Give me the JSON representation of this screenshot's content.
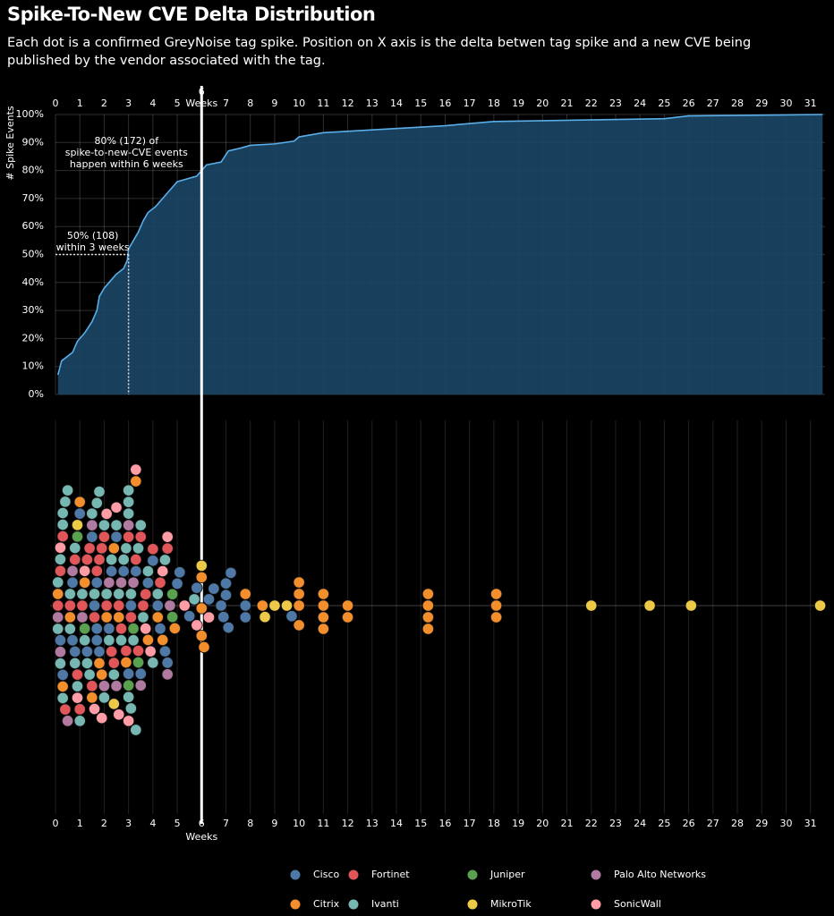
{
  "chart_data": [
    {
      "type": "area",
      "title": "Spike-To-New CVE Delta Distribution",
      "subtitle": "Each dot is a confirmed GreyNoise tag spike. Position on X axis is the delta betwen tag spike and a new CVE being published by the vendor associated with the tag.",
      "ylabel": "# Spike Events",
      "x_unit_label": "Weeks",
      "xlim": [
        0,
        31.6
      ],
      "xticks": [
        0,
        1,
        2,
        3,
        4,
        5,
        6,
        7,
        8,
        9,
        10,
        11,
        12,
        13,
        14,
        15,
        16,
        17,
        18,
        19,
        20,
        21,
        22,
        23,
        24,
        25,
        26,
        27,
        28,
        29,
        30,
        31
      ],
      "ylim": [
        0,
        100
      ],
      "yticks": [
        {
          "value": 0,
          "label": "0%"
        },
        {
          "value": 10,
          "label": "10%"
        },
        {
          "value": 20,
          "label": "20%"
        },
        {
          "value": 30,
          "label": "30%"
        },
        {
          "value": 40,
          "label": "40%"
        },
        {
          "value": 50,
          "label": "50%"
        },
        {
          "value": 60,
          "label": "60%"
        },
        {
          "value": 70,
          "label": "70%"
        },
        {
          "value": 80,
          "label": "80%"
        },
        {
          "value": 90,
          "label": "90%"
        },
        {
          "value": 100,
          "label": "100%"
        }
      ],
      "grid": true,
      "color": "#5aaee8",
      "fill": "#1b4767",
      "x": [
        0.1,
        0.25,
        0.4,
        0.7,
        0.9,
        1.2,
        1.5,
        1.7,
        1.8,
        2,
        2.2,
        2.5,
        2.8,
        2.95,
        3,
        3.2,
        3.4,
        3.6,
        3.8,
        4.1,
        4.4,
        4.7,
        5,
        5.4,
        5.8,
        6,
        6.2,
        6.8,
        7.1,
        7.6,
        8,
        9,
        9.8,
        10,
        11,
        13,
        16,
        18,
        25,
        26,
        31.5
      ],
      "values": [
        7,
        12,
        13,
        15,
        19,
        22,
        26,
        30,
        35,
        38,
        40,
        43,
        45,
        48,
        52,
        55,
        58,
        62,
        65,
        67,
        70,
        73,
        76,
        77,
        78,
        80,
        82,
        83,
        87,
        88,
        89,
        89.5,
        90.5,
        92,
        93.5,
        94.5,
        96,
        97.5,
        98.5,
        99.5,
        100
      ],
      "reference_lines": [
        {
          "x": 6,
          "style": "solid"
        },
        {
          "x": 3,
          "y": 50,
          "style": "dotted"
        }
      ],
      "annotations": [
        {
          "lines": [
            "80% (172) of",
            "spike-to-new-CVE events",
            "happen within 6 weeks"
          ]
        },
        {
          "lines": [
            "50% (108)",
            "within 3 weeks"
          ]
        }
      ]
    },
    {
      "type": "swarm",
      "xlim": [
        0,
        31.6
      ],
      "xticks": [
        0,
        1,
        2,
        3,
        4,
        5,
        6,
        7,
        8,
        9,
        10,
        11,
        12,
        13,
        14,
        15,
        16,
        17,
        18,
        19,
        20,
        21,
        22,
        23,
        24,
        25,
        26,
        27,
        28,
        29,
        30,
        31
      ],
      "x_unit_label": "Weeks",
      "legend": "bottom",
      "series": [
        {
          "name": "Cisco",
          "color": "#4e79a7",
          "x": [
            0.2,
            0.3,
            0.7,
            0.7,
            0.8,
            1,
            1.3,
            1.5,
            1.6,
            1.7,
            1.7,
            1.8,
            2.2,
            2.3,
            2.5,
            2.8,
            3,
            3.1,
            3.3,
            3.5,
            3.8,
            4,
            4.2,
            4.3,
            4.5,
            4.6,
            5,
            5.1,
            5.5,
            5.8,
            6.3,
            6.5,
            6.8,
            6.9,
            7,
            7,
            7.1,
            7.2,
            7.8,
            7.8,
            9.7,
            1.7
          ]
        },
        {
          "name": "Fortinet",
          "color": "#e15759",
          "x": [
            0.1,
            0.2,
            0.4,
            0.6,
            0.9,
            1,
            1.1,
            1.3,
            1.5,
            1.6,
            1.7,
            1.8,
            1.9,
            2,
            2.1,
            2.3,
            2.4,
            2.7,
            2.9,
            3,
            3.1,
            3.3,
            3.4,
            3.6,
            3.7,
            4,
            4.3,
            4.6,
            0.3,
            0.8,
            1.4,
            2.6,
            3.5
          ]
        },
        {
          "name": "Juniper",
          "color": "#59a14f",
          "x": [
            0.9,
            1.2,
            3,
            3.4,
            4.8,
            4.8,
            3.2
          ]
        },
        {
          "name": "Palo Alto Networks",
          "color": "#b07aa1",
          "x": [
            0.1,
            0.2,
            0.7,
            1.1,
            1.5,
            2,
            2.5,
            2.7,
            3,
            3.2,
            3.5,
            4.6,
            4.7,
            2.2,
            0.5
          ]
        },
        {
          "name": "Citrix",
          "color": "#f28e2b",
          "x": [
            0.1,
            0.3,
            0.6,
            1,
            1.2,
            1.5,
            1.8,
            1.9,
            2.1,
            2.4,
            2.9,
            3.3,
            3.8,
            4.2,
            4.9,
            6,
            6,
            6.1,
            6,
            7.8,
            8.5,
            10,
            10,
            10,
            10,
            11,
            11,
            11,
            11,
            12,
            12,
            15.3,
            15.3,
            15.3,
            15.3,
            18.1,
            18.1,
            18.1,
            2.6,
            4.4
          ]
        },
        {
          "name": "Ivanti",
          "color": "#76b7b2",
          "x": [
            0.1,
            0.1,
            0.2,
            0.2,
            0.3,
            0.3,
            0.3,
            0.4,
            0.5,
            0.6,
            0.8,
            0.8,
            0.9,
            1,
            1.1,
            1.2,
            1.3,
            1.4,
            1.6,
            1.7,
            1.8,
            2,
            2,
            2.1,
            2.3,
            2.4,
            2.5,
            2.6,
            2.8,
            2.9,
            3,
            3,
            3,
            3.1,
            3.1,
            3.2,
            3.3,
            3.4,
            3.5,
            3.6,
            3.8,
            4,
            4.2,
            4.5,
            5.7,
            1.5,
            2.2,
            0.6,
            2.7,
            3
          ]
        },
        {
          "name": "MikroTik",
          "color": "#edc948",
          "x": [
            0.9,
            2.4,
            6,
            8.6,
            9,
            9.5,
            22,
            24.4,
            26.1,
            31.4
          ]
        },
        {
          "name": "SonicWall",
          "color": "#ff9da7",
          "x": [
            0.2,
            0.9,
            1.6,
            1.9,
            2.1,
            2.6,
            3,
            3.3,
            3.7,
            3.9,
            4.4,
            4.6,
            5.3,
            5.8,
            6.3,
            2.5,
            1.2
          ]
        }
      ]
    }
  ]
}
